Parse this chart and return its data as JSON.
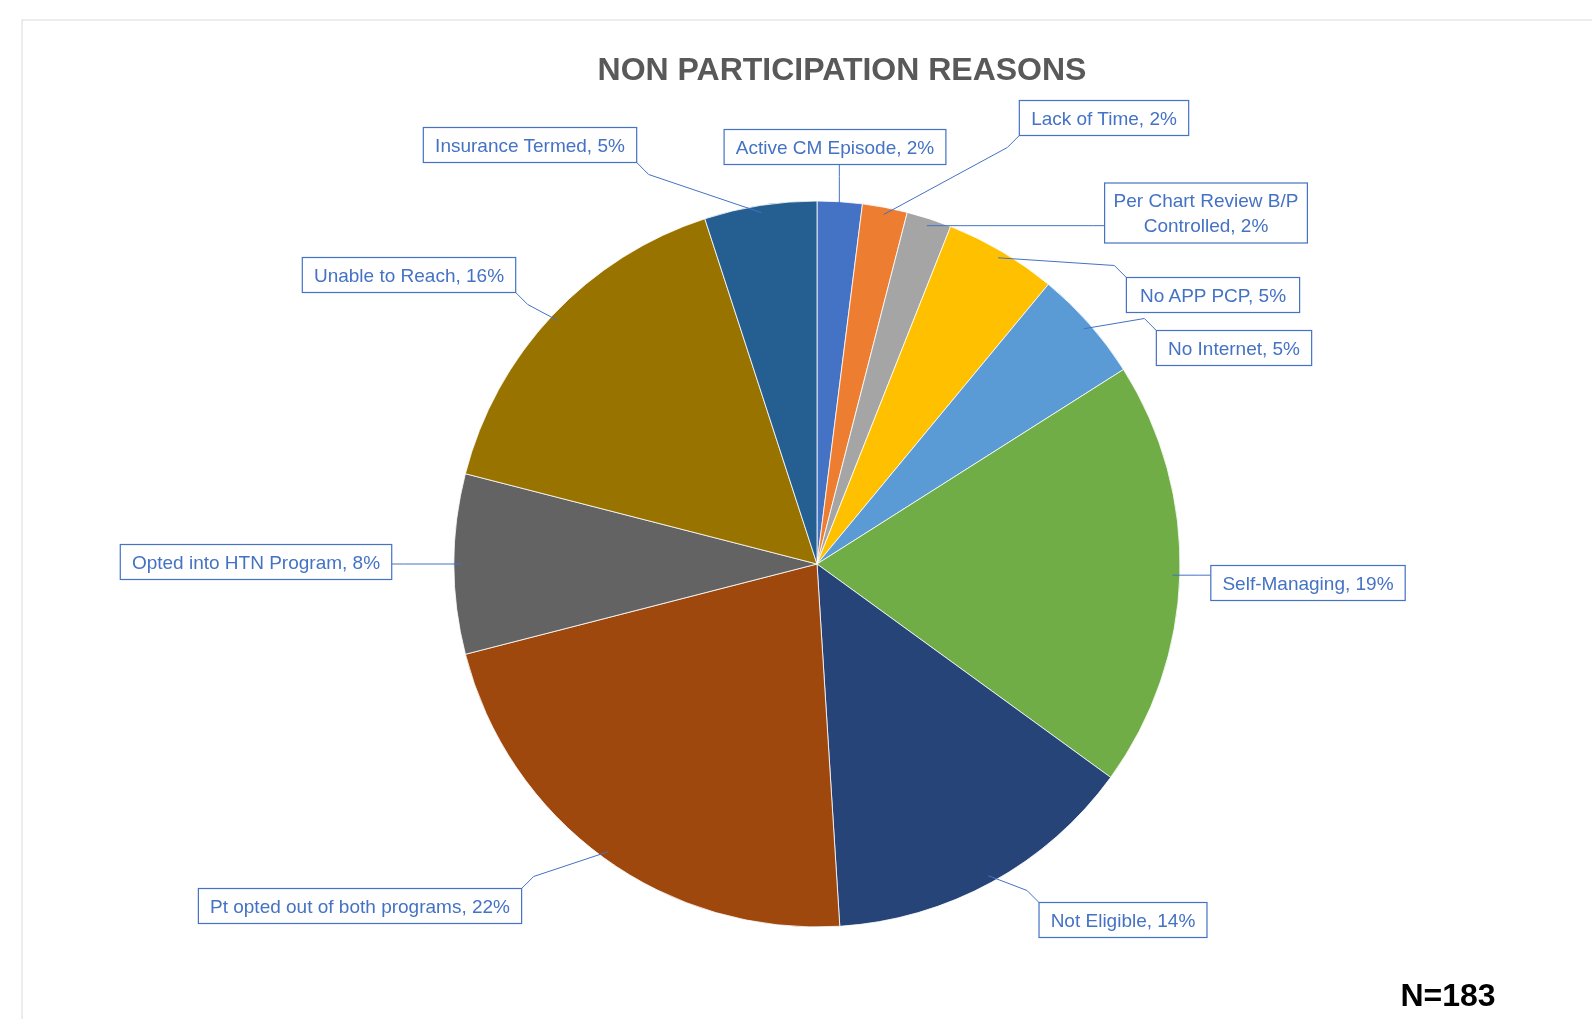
{
  "chart_data": {
    "type": "pie",
    "title": "NON PARTICIPATION REASONS",
    "categories": [
      "Active CM Episode",
      "Lack of Time",
      "Per Chart Review B/P Controlled",
      "No APP PCP",
      "No Internet",
      "Self-Managing",
      "Not Eligible",
      "Pt opted out of both programs",
      "Opted into HTN Program",
      "Unable  to Reach",
      "Insurance Termed"
    ],
    "values": [
      2,
      2,
      2,
      5,
      5,
      19,
      14,
      22,
      8,
      16,
      5
    ],
    "value_labels": [
      ", 2%",
      ", 2%",
      ", 2%",
      ", 5%",
      ", 5%",
      ", 19%",
      ", 14%",
      ", 22%",
      ", 8%",
      ", 16%",
      ", 5%"
    ],
    "colors": [
      "#4472c4",
      "#ed7d31",
      "#a5a5a5",
      "#ffc000",
      "#5b9bd5",
      "#70ad47",
      "#264478",
      "#9e480e",
      "#636363",
      "#997300",
      "#255e91"
    ],
    "data_labels": true,
    "annotations": [
      "N=183"
    ]
  }
}
